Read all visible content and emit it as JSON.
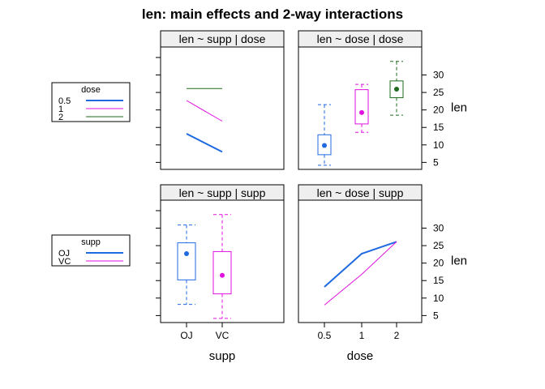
{
  "title": "len: main effects and 2-way interactions",
  "colors": {
    "blue": "#1f6ae0",
    "magenta": "#e012e0",
    "green": "#1e6b1e",
    "strip": "#efefef",
    "frame": "#000000"
  },
  "legends": [
    {
      "title": "dose",
      "entries": [
        {
          "label": "0.5",
          "color": "#1f6ae0"
        },
        {
          "label": "1",
          "color": "#e012e0"
        },
        {
          "label": "2",
          "color": "#1e6b1e"
        }
      ]
    },
    {
      "title": "supp",
      "entries": [
        {
          "label": "OJ",
          "color": "#1f6ae0"
        },
        {
          "label": "VC",
          "color": "#e012e0"
        }
      ]
    }
  ],
  "axes": {
    "y_ticks": [
      "5",
      "10",
      "15",
      "20",
      "25",
      "30"
    ],
    "y_label": "len",
    "x_supp_ticks": [
      "OJ",
      "VC"
    ],
    "x_dose_ticks": [
      "0.5",
      "1",
      "2"
    ],
    "x_supp_label": "supp",
    "x_dose_label": "dose"
  },
  "chart_data": [
    {
      "panel": "len ~ supp | dose",
      "type": "line",
      "categories": [
        "OJ",
        "VC"
      ],
      "ylim": [
        3,
        38
      ],
      "series": [
        {
          "name": "0.5",
          "values": [
            13.2,
            8.0
          ],
          "color": "#1f6ae0"
        },
        {
          "name": "1",
          "values": [
            22.7,
            16.8
          ],
          "color": "#e012e0"
        },
        {
          "name": "2",
          "values": [
            26.1,
            26.1
          ],
          "color": "#1e6b1e"
        }
      ]
    },
    {
      "panel": "len ~ dose | dose",
      "type": "box",
      "categories": [
        "0.5",
        "1",
        "2"
      ],
      "ylim": [
        3,
        38
      ],
      "boxes": [
        {
          "min": 4.2,
          "q1": 7.2,
          "median": 9.85,
          "q3": 12.9,
          "max": 21.5,
          "color": "#1f6ae0"
        },
        {
          "min": 13.6,
          "q1": 16.0,
          "median": 19.25,
          "q3": 25.8,
          "max": 27.3,
          "color": "#e012e0"
        },
        {
          "min": 18.5,
          "q1": 23.5,
          "median": 25.95,
          "q3": 28.3,
          "max": 33.9,
          "color": "#1e6b1e"
        }
      ]
    },
    {
      "panel": "len ~ supp | supp",
      "type": "box",
      "categories": [
        "OJ",
        "VC"
      ],
      "ylim": [
        3,
        38
      ],
      "boxes": [
        {
          "min": 8.2,
          "q1": 15.2,
          "median": 22.7,
          "q3": 25.8,
          "max": 30.9,
          "color": "#1f6ae0"
        },
        {
          "min": 4.2,
          "q1": 11.2,
          "median": 16.5,
          "q3": 23.3,
          "max": 33.9,
          "color": "#e012e0"
        }
      ]
    },
    {
      "panel": "len ~ dose | supp",
      "type": "line",
      "categories": [
        "0.5",
        "1",
        "2"
      ],
      "ylim": [
        3,
        38
      ],
      "series": [
        {
          "name": "OJ",
          "values": [
            13.2,
            22.7,
            26.1
          ],
          "color": "#1f6ae0"
        },
        {
          "name": "VC",
          "values": [
            8.0,
            16.8,
            26.1
          ],
          "color": "#e012e0"
        }
      ]
    }
  ]
}
